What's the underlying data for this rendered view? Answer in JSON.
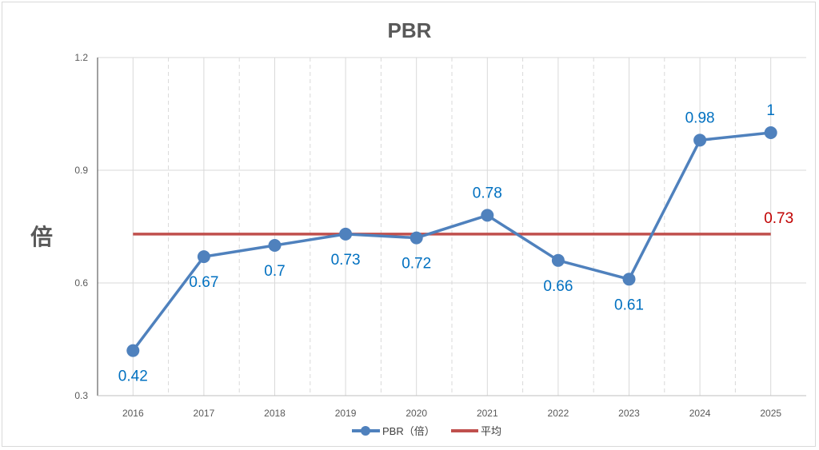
{
  "chart_data": {
    "type": "line",
    "title": "PBR",
    "xlabel": "",
    "ylabel": "倍",
    "ylim": [
      0.3,
      1.2
    ],
    "yticks": [
      "0.3",
      "0.6",
      "0.9",
      "1.2"
    ],
    "categories": [
      "2016",
      "2017",
      "2018",
      "2019",
      "2020",
      "2021",
      "2022",
      "2023",
      "2024",
      "2025"
    ],
    "series": [
      {
        "name": "PBR（倍）",
        "color": "#4f81bd",
        "values": [
          0.42,
          0.67,
          0.7,
          0.73,
          0.72,
          0.78,
          0.66,
          0.61,
          0.98,
          1
        ],
        "labels": [
          "0.42",
          "0.67",
          "0.7",
          "0.73",
          "0.72",
          "0.78",
          "0.66",
          "0.61",
          "0.98",
          "1"
        ],
        "label_pos": [
          "below",
          "below",
          "below",
          "below",
          "below",
          "above",
          "below",
          "below",
          "above",
          "above"
        ]
      },
      {
        "name": "平均",
        "color": "#c0504d",
        "value": 0.73,
        "label": "0.73"
      }
    ],
    "legend": "bottom",
    "grid": true
  }
}
